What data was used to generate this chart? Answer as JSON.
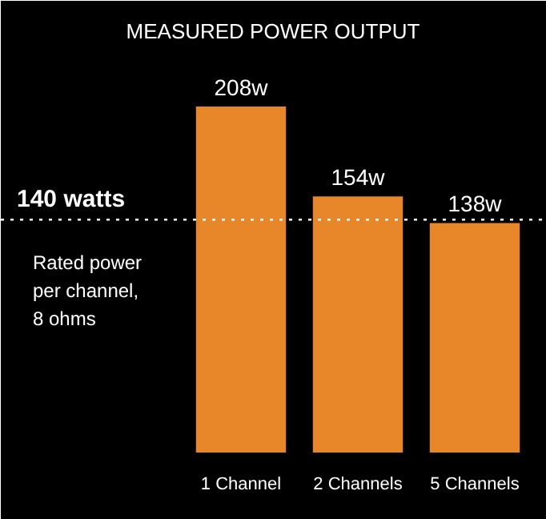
{
  "chart_data": {
    "type": "bar",
    "title": "MEASURED POWER OUTPUT",
    "categories": [
      "1 Channel",
      "2 Channels",
      "5 Channels"
    ],
    "values": [
      208,
      154,
      138
    ],
    "color": "#e8862a",
    "value_labels": [
      "208w",
      "154w",
      "138w"
    ],
    "ref_lines": [
      {
        "axis": "y",
        "value": 140,
        "label": "140 watts",
        "color": "#ffffff",
        "line_style": "dotted"
      }
    ],
    "annotations": [
      "Rated power\nper channel,\n8 ohms"
    ],
    "tick_labels": false,
    "grid": false
  }
}
